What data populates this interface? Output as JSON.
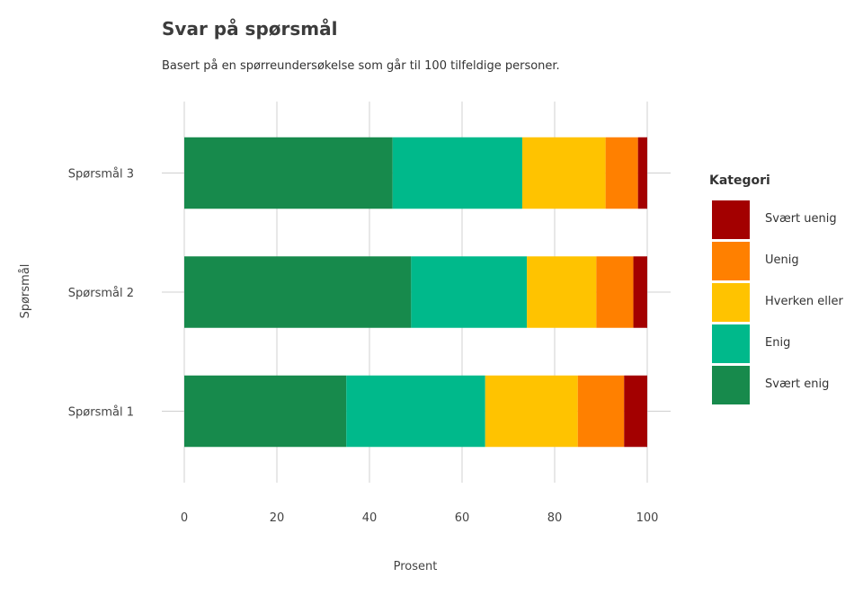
{
  "chart_data": {
    "type": "bar",
    "orientation": "horizontal",
    "stacked": true,
    "title": "Svar på spørsmål",
    "subtitle": "Basert på en spørreundersøkelse som går til 100 tilfeldige personer.",
    "xlabel": "Prosent",
    "ylabel": "Spørsmål",
    "xlim": [
      0,
      100
    ],
    "xticks": [
      "0",
      "20",
      "40",
      "60",
      "80",
      "100"
    ],
    "grid": true,
    "legend_title": "Kategori",
    "legend_position": "right",
    "categories": [
      "Spørsmål 1",
      "Spørsmål 2",
      "Spørsmål 3"
    ],
    "series": [
      {
        "name": "Svært enig",
        "color": "#178a4c",
        "values": [
          35,
          49,
          45
        ]
      },
      {
        "name": "Enig",
        "color": "#00b98b",
        "values": [
          30,
          25,
          28
        ]
      },
      {
        "name": "Hverken eller",
        "color": "#ffc300",
        "values": [
          20,
          15,
          18
        ]
      },
      {
        "name": "Uenig",
        "color": "#ff8000",
        "values": [
          10,
          8,
          7
        ]
      },
      {
        "name": "Svært uenig",
        "color": "#a30000",
        "values": [
          5,
          3,
          2
        ]
      }
    ]
  }
}
